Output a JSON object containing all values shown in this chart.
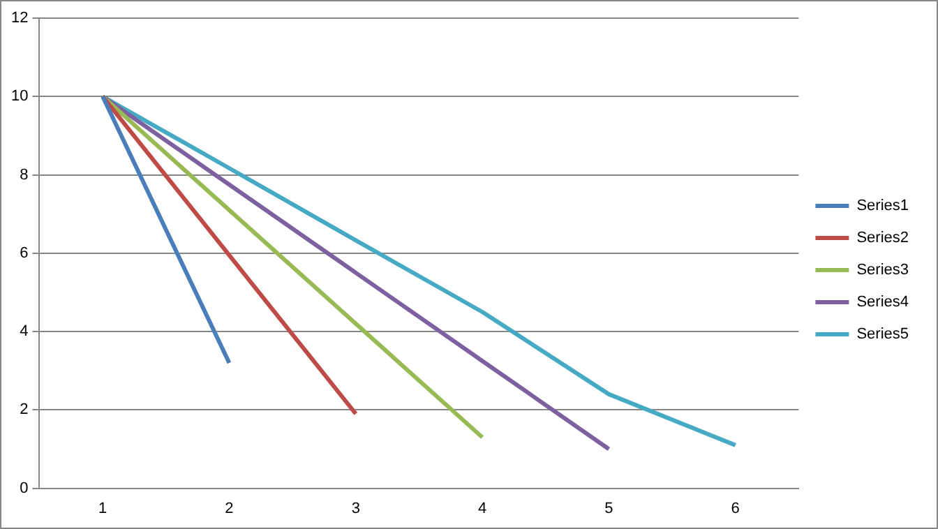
{
  "chart_data": {
    "type": "line",
    "categories": [
      "1",
      "2",
      "3",
      "4",
      "5",
      "6"
    ],
    "series": [
      {
        "name": "Series1",
        "color": "#4a7ebb",
        "values": [
          10,
          3.2,
          null,
          null,
          null,
          null
        ]
      },
      {
        "name": "Series2",
        "color": "#be4b48",
        "values": [
          10,
          5.95,
          1.9,
          null,
          null,
          null
        ]
      },
      {
        "name": "Series3",
        "color": "#98b954",
        "values": [
          10,
          7.1,
          4.2,
          1.3,
          null,
          null
        ]
      },
      {
        "name": "Series4",
        "color": "#7d60a0",
        "values": [
          10,
          7.75,
          5.5,
          3.25,
          1.0,
          null
        ]
      },
      {
        "name": "Series5",
        "color": "#46aac5",
        "values": [
          10,
          8.17,
          6.33,
          4.5,
          2.4,
          1.1
        ]
      }
    ],
    "ylim": [
      0,
      12
    ],
    "yticks": [
      0,
      2,
      4,
      6,
      8,
      10,
      12
    ],
    "grid": "y",
    "legend": "right",
    "marker": "none",
    "line_style": "solid"
  }
}
